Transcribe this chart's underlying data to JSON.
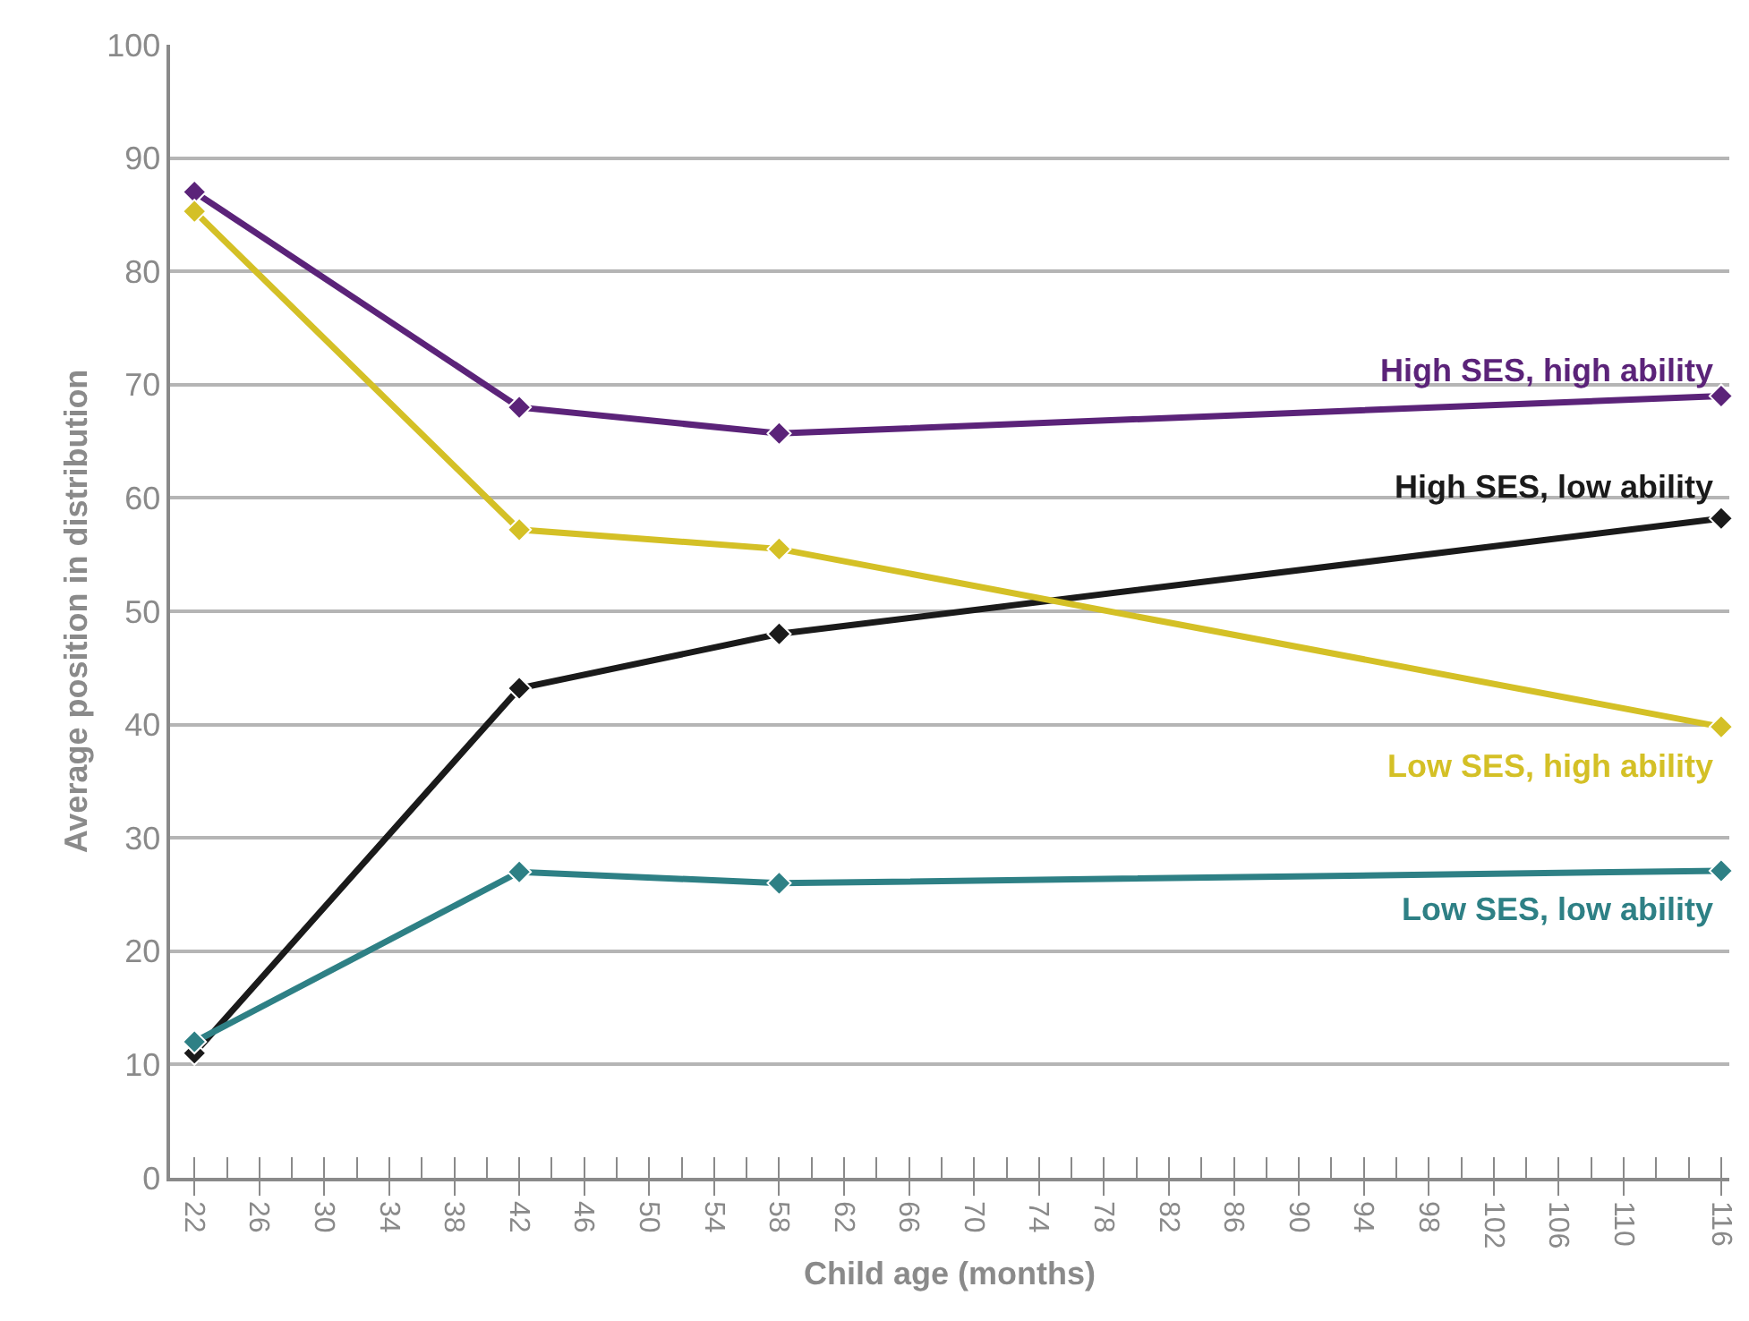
{
  "chart_data": {
    "type": "line",
    "xlabel": "Child age (months)",
    "ylabel": "Average position in distribution",
    "x": [
      22,
      42,
      58,
      116
    ],
    "series": [
      {
        "name": "High SES, high ability",
        "color": "#5b2379",
        "values": [
          87,
          68,
          65.7,
          69
        ]
      },
      {
        "name": "High SES, low ability",
        "color": "#1a1a1a",
        "values": [
          11,
          43.2,
          48,
          58.2
        ]
      },
      {
        "name": "Low SES, high ability",
        "color": "#d4c026",
        "values": [
          85.3,
          57.2,
          55.5,
          39.8
        ]
      },
      {
        "name": "Low SES, low ability",
        "color": "#2e8085",
        "values": [
          12,
          27,
          26,
          27.1
        ]
      }
    ],
    "xlim": [
      20.5,
      116.5
    ],
    "xticks": [
      22,
      26,
      30,
      34,
      38,
      42,
      46,
      50,
      54,
      58,
      62,
      66,
      70,
      74,
      78,
      82,
      86,
      90,
      94,
      98,
      102,
      106,
      110,
      116
    ],
    "ylim": [
      0,
      100
    ],
    "yticks": [
      0,
      10,
      20,
      30,
      40,
      50,
      60,
      70,
      80,
      90,
      100
    ],
    "grid": "y",
    "legend": false,
    "marker": "diamond",
    "line_style": "solid"
  }
}
